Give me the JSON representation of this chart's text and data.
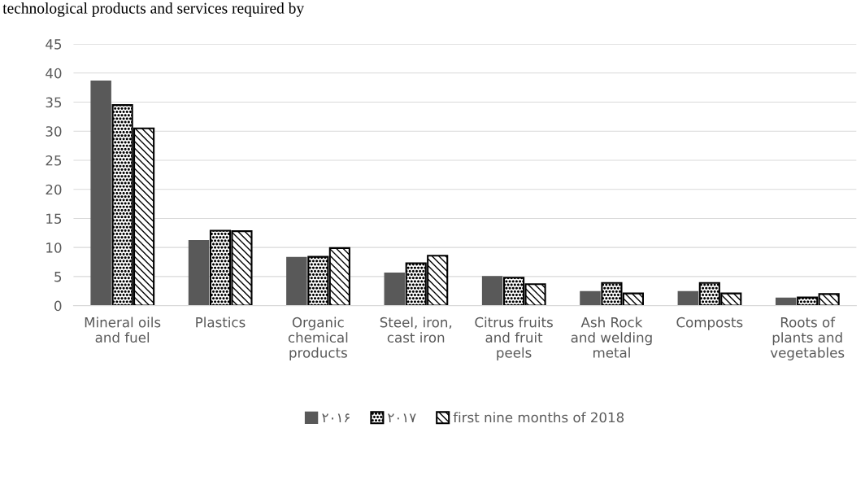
{
  "chart_data": {
    "type": "bar",
    "annotations": [
      "technological products and services required by"
    ],
    "categories": [
      "Mineral oils\nand fuel",
      "Plastics",
      "Organic\nchemical\nproducts",
      "Steel, iron,\ncast iron",
      "Citrus fruits\nand fruit\npeels",
      "Ash Rock\nand welding\nmetal",
      "Composts",
      "Roots of\nplants and\nvegetables"
    ],
    "series": [
      {
        "name": "۲۰۱۶",
        "color": "#595959",
        "values": [
          38.6,
          11.2,
          8.3,
          5.6,
          5.0,
          2.4,
          2.4,
          1.3
        ]
      },
      {
        "name": "۲۰۱۷",
        "color": "#000000",
        "values": [
          34.5,
          12.9,
          8.4,
          7.3,
          4.8,
          3.9,
          3.9,
          1.4
        ]
      },
      {
        "name": "first nine months of 2018",
        "color": "#000000",
        "values": [
          30.5,
          12.8,
          9.9,
          8.6,
          3.7,
          2.1,
          2.1,
          2.0
        ]
      }
    ],
    "ylim": [
      0,
      45
    ],
    "yticks": [
      0,
      5,
      10,
      15,
      20,
      25,
      30,
      35,
      40,
      45
    ],
    "grid": "y",
    "legend": "bottom"
  }
}
